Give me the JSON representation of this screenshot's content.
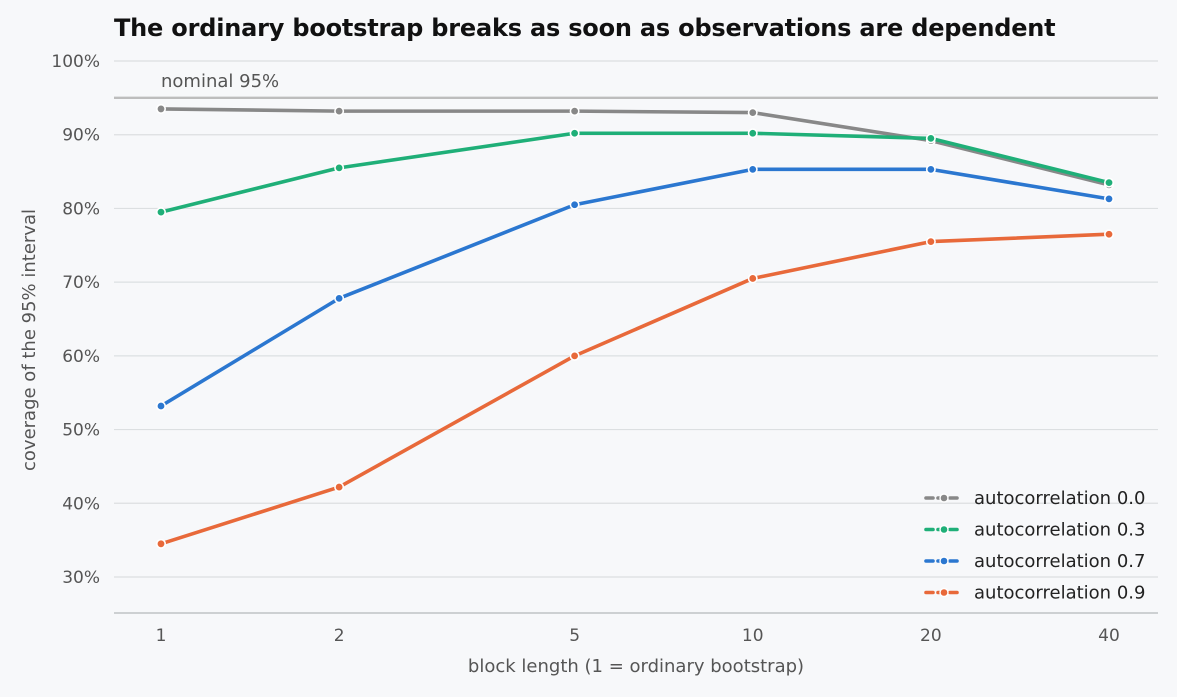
{
  "chart_data": {
    "type": "line",
    "title": "The ordinary bootstrap breaks as soon as observations are dependent",
    "xlabel": "block length (1 = ordinary bootstrap)",
    "ylabel": "coverage of the 95% interval",
    "x": [
      1,
      2,
      5,
      10,
      20,
      40
    ],
    "x_tick_labels": [
      "1",
      "2",
      "5",
      "10",
      "20",
      "40"
    ],
    "x_scale": "log",
    "ylim": [
      25,
      100
    ],
    "y_ticks": [
      30,
      40,
      50,
      60,
      70,
      80,
      90,
      100
    ],
    "y_tick_labels": [
      "30%",
      "40%",
      "50%",
      "60%",
      "70%",
      "80%",
      "90%",
      "100%"
    ],
    "grid": "horizontal",
    "legend_position": "bottom-right",
    "reference_line": {
      "value": 95,
      "label": "nominal 95%"
    },
    "series": [
      {
        "name": "autocorrelation 0.0",
        "color": "#888888",
        "values": [
          93.5,
          93.2,
          93.2,
          93.0,
          89.2,
          83.2
        ]
      },
      {
        "name": "autocorrelation 0.3",
        "color": "#1faf78",
        "values": [
          79.5,
          85.5,
          90.2,
          90.2,
          89.5,
          83.5
        ]
      },
      {
        "name": "autocorrelation 0.7",
        "color": "#2b77d0",
        "values": [
          53.2,
          67.8,
          80.5,
          85.3,
          85.3,
          81.3
        ]
      },
      {
        "name": "autocorrelation 0.9",
        "color": "#e8693a",
        "values": [
          34.5,
          42.2,
          60.0,
          70.5,
          75.5,
          76.5
        ]
      }
    ]
  }
}
